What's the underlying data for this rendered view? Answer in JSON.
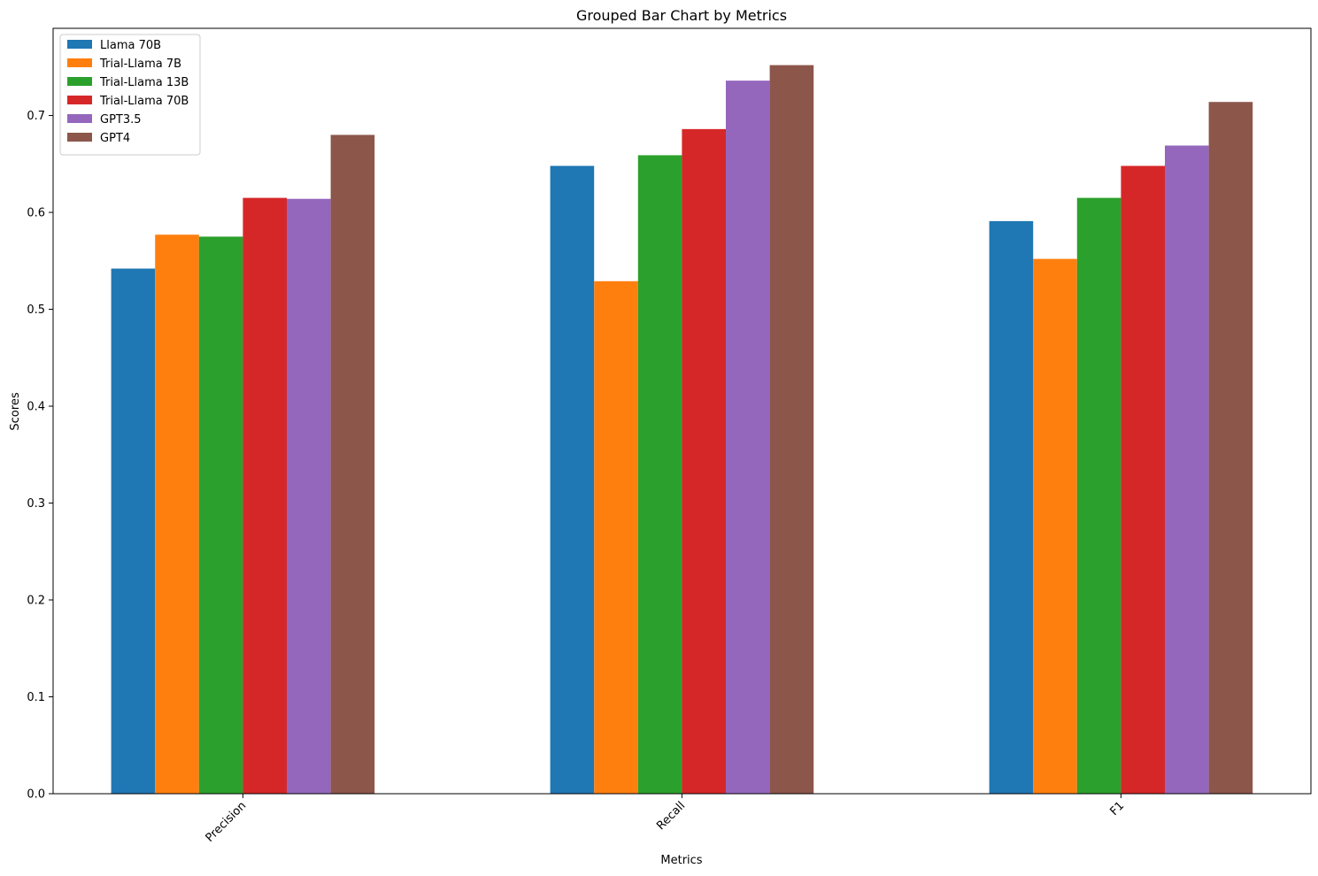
{
  "chart_data": {
    "type": "bar",
    "title": "Grouped Bar Chart by Metrics",
    "xlabel": "Metrics",
    "ylabel": "Scores",
    "categories": [
      "Precision",
      "Recall",
      "F1"
    ],
    "ylim": [
      0,
      0.79
    ],
    "yticks": [
      "0.0",
      "0.1",
      "0.2",
      "0.3",
      "0.4",
      "0.5",
      "0.6",
      "0.7"
    ],
    "grid": false,
    "legend_position": "top-left",
    "xtick_rotation": "45 degrees",
    "series": [
      {
        "name": "Llama 70B",
        "color": "#1f77b4",
        "values": [
          0.542,
          0.648,
          0.591
        ]
      },
      {
        "name": "Trial-Llama 7B",
        "color": "#ff7f0e",
        "values": [
          0.577,
          0.529,
          0.552
        ]
      },
      {
        "name": "Trial-Llama 13B",
        "color": "#2ca02c",
        "values": [
          0.575,
          0.659,
          0.615
        ]
      },
      {
        "name": "Trial-Llama 70B",
        "color": "#d62728",
        "values": [
          0.615,
          0.686,
          0.648
        ]
      },
      {
        "name": "GPT3.5",
        "color": "#9467bd",
        "values": [
          0.614,
          0.736,
          0.669
        ]
      },
      {
        "name": "GPT4",
        "color": "#8c564b",
        "values": [
          0.68,
          0.752,
          0.714
        ]
      }
    ]
  }
}
